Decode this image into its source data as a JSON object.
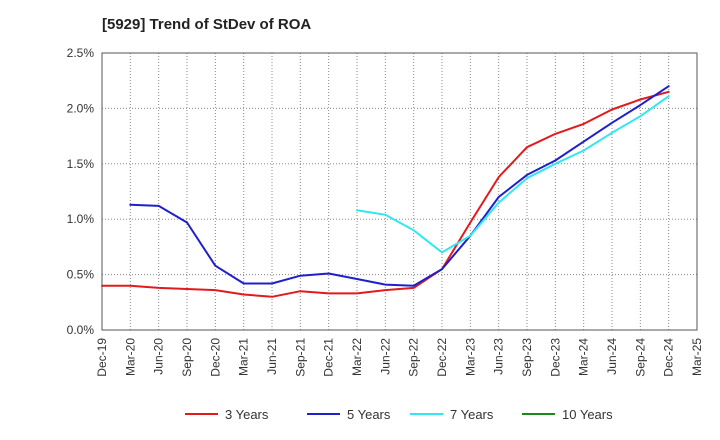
{
  "chart_data": {
    "type": "line",
    "title": "[5929]  Trend of StDev of ROA",
    "xlabel": "",
    "ylabel": "",
    "x_ticks": [
      "Dec-19",
      "Mar-20",
      "Jun-20",
      "Sep-20",
      "Dec-20",
      "Mar-21",
      "Jun-21",
      "Sep-21",
      "Dec-21",
      "Mar-22",
      "Jun-22",
      "Sep-22",
      "Dec-22",
      "Mar-23",
      "Jun-23",
      "Sep-23",
      "Dec-23",
      "Mar-24",
      "Jun-24",
      "Sep-24",
      "Dec-24",
      "Mar-25"
    ],
    "y_ticks": [
      "0.0%",
      "0.5%",
      "1.0%",
      "1.5%",
      "2.0%",
      "2.5%"
    ],
    "ylim": [
      0,
      2.5
    ],
    "y_unit": "%",
    "grid": "dotted",
    "legend_position": "bottom",
    "series": [
      {
        "name": "3 Years",
        "color": "#e31a1c",
        "points": [
          [
            "Dec-19",
            0.4
          ],
          [
            "Mar-20",
            0.4
          ],
          [
            "Jun-20",
            0.38
          ],
          [
            "Sep-20",
            0.37
          ],
          [
            "Dec-20",
            0.36
          ],
          [
            "Mar-21",
            0.32
          ],
          [
            "Jun-21",
            0.3
          ],
          [
            "Sep-21",
            0.35
          ],
          [
            "Dec-21",
            0.33
          ],
          [
            "Mar-22",
            0.33
          ],
          [
            "Jun-22",
            0.36
          ],
          [
            "Sep-22",
            0.38
          ],
          [
            "Dec-22",
            0.55
          ],
          [
            "Mar-23",
            0.97
          ],
          [
            "Jun-23",
            1.38
          ],
          [
            "Sep-23",
            1.65
          ],
          [
            "Dec-23",
            1.77
          ],
          [
            "Mar-24",
            1.86
          ],
          [
            "Jun-24",
            1.99
          ],
          [
            "Sep-24",
            2.08
          ],
          [
            "Dec-24",
            2.15
          ]
        ]
      },
      {
        "name": "5 Years",
        "color": "#1f1fcc",
        "points": [
          [
            "Mar-20",
            1.13
          ],
          [
            "Jun-20",
            1.12
          ],
          [
            "Sep-20",
            0.97
          ],
          [
            "Dec-20",
            0.58
          ],
          [
            "Mar-21",
            0.42
          ],
          [
            "Jun-21",
            0.42
          ],
          [
            "Sep-21",
            0.49
          ],
          [
            "Dec-21",
            0.51
          ],
          [
            "Mar-22",
            0.46
          ],
          [
            "Jun-22",
            0.41
          ],
          [
            "Sep-22",
            0.4
          ],
          [
            "Dec-22",
            0.55
          ],
          [
            "Mar-23",
            0.85
          ],
          [
            "Jun-23",
            1.2
          ],
          [
            "Sep-23",
            1.4
          ],
          [
            "Dec-23",
            1.53
          ],
          [
            "Mar-24",
            1.7
          ],
          [
            "Jun-24",
            1.87
          ],
          [
            "Sep-24",
            2.03
          ],
          [
            "Dec-24",
            2.2
          ]
        ]
      },
      {
        "name": "7 Years",
        "color": "#33e6f0",
        "points": [
          [
            "Mar-22",
            1.08
          ],
          [
            "Jun-22",
            1.04
          ],
          [
            "Sep-22",
            0.9
          ],
          [
            "Dec-22",
            0.7
          ],
          [
            "Mar-23",
            0.85
          ],
          [
            "Jun-23",
            1.15
          ],
          [
            "Sep-23",
            1.37
          ],
          [
            "Dec-23",
            1.5
          ],
          [
            "Mar-24",
            1.62
          ],
          [
            "Jun-24",
            1.78
          ],
          [
            "Sep-24",
            1.93
          ],
          [
            "Dec-24",
            2.11
          ]
        ]
      },
      {
        "name": "10 Years",
        "color": "#1a8a1a",
        "points": []
      }
    ]
  }
}
